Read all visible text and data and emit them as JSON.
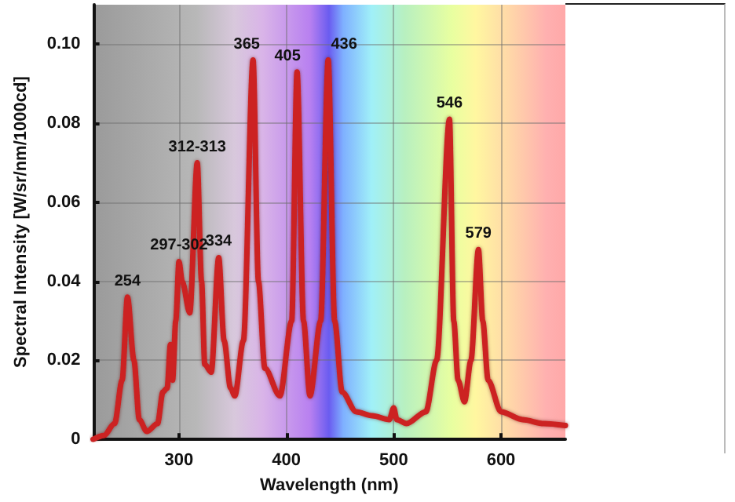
{
  "chart_data": {
    "type": "line",
    "xlabel": "Wavelength (nm)",
    "ylabel": "Spectral Intensity [W/sr/nm/1000cd]",
    "xlim": [
      220,
      660
    ],
    "xticks": [
      300,
      400,
      500,
      600
    ],
    "ylim": [
      0,
      0.11
    ],
    "yticks": [
      0,
      0.02,
      0.04,
      0.06,
      {
        "value": 0.1,
        "label": "0.10"
      },
      0.08
    ],
    "grid": true,
    "marker": "none",
    "line_style": "solid",
    "series": [
      {
        "color": "#cc2020",
        "x": [
          220,
          230,
          240,
          247,
          252,
          258,
          263,
          270,
          280,
          285,
          289,
          292,
          294,
          297,
          300,
          303,
          310,
          317,
          321,
          324,
          330,
          337,
          342,
          348,
          352,
          360,
          369,
          374,
          380,
          394,
          405,
          410,
          416,
          422,
          432,
          439,
          445,
          452,
          465,
          480,
          496,
          500,
          503,
          512,
          530,
          540,
          552,
          556,
          560,
          566,
          572,
          579,
          583,
          588,
          600,
          620,
          640,
          660
        ],
        "values": [
          0.0,
          0.001,
          0.004,
          0.015,
          0.036,
          0.02,
          0.005,
          0.002,
          0.004,
          0.012,
          0.013,
          0.024,
          0.015,
          0.03,
          0.045,
          0.04,
          0.032,
          0.07,
          0.04,
          0.019,
          0.017,
          0.046,
          0.025,
          0.013,
          0.011,
          0.025,
          0.096,
          0.04,
          0.018,
          0.011,
          0.03,
          0.093,
          0.03,
          0.011,
          0.03,
          0.096,
          0.03,
          0.012,
          0.007,
          0.006,
          0.005,
          0.008,
          0.005,
          0.004,
          0.007,
          0.02,
          0.081,
          0.03,
          0.015,
          0.0095,
          0.02,
          0.048,
          0.03,
          0.015,
          0.007,
          0.005,
          0.004,
          0.0035
        ]
      }
    ],
    "annotations": [
      {
        "text": "254",
        "x": 252,
        "y": 0.036
      },
      {
        "text": "297-302",
        "x": 300,
        "y": 0.045
      },
      {
        "text": "312-313",
        "x": 317,
        "y": 0.07
      },
      {
        "text": "334",
        "x": 337,
        "y": 0.046
      },
      {
        "text": "365",
        "x": 369,
        "y": 0.096
      },
      {
        "text": "405",
        "x": 410,
        "y": 0.093
      },
      {
        "text": "436",
        "x": 439,
        "y": 0.096
      },
      {
        "text": "546",
        "x": 552,
        "y": 0.081
      },
      {
        "text": "579",
        "x": 579,
        "y": 0.048
      }
    ]
  }
}
